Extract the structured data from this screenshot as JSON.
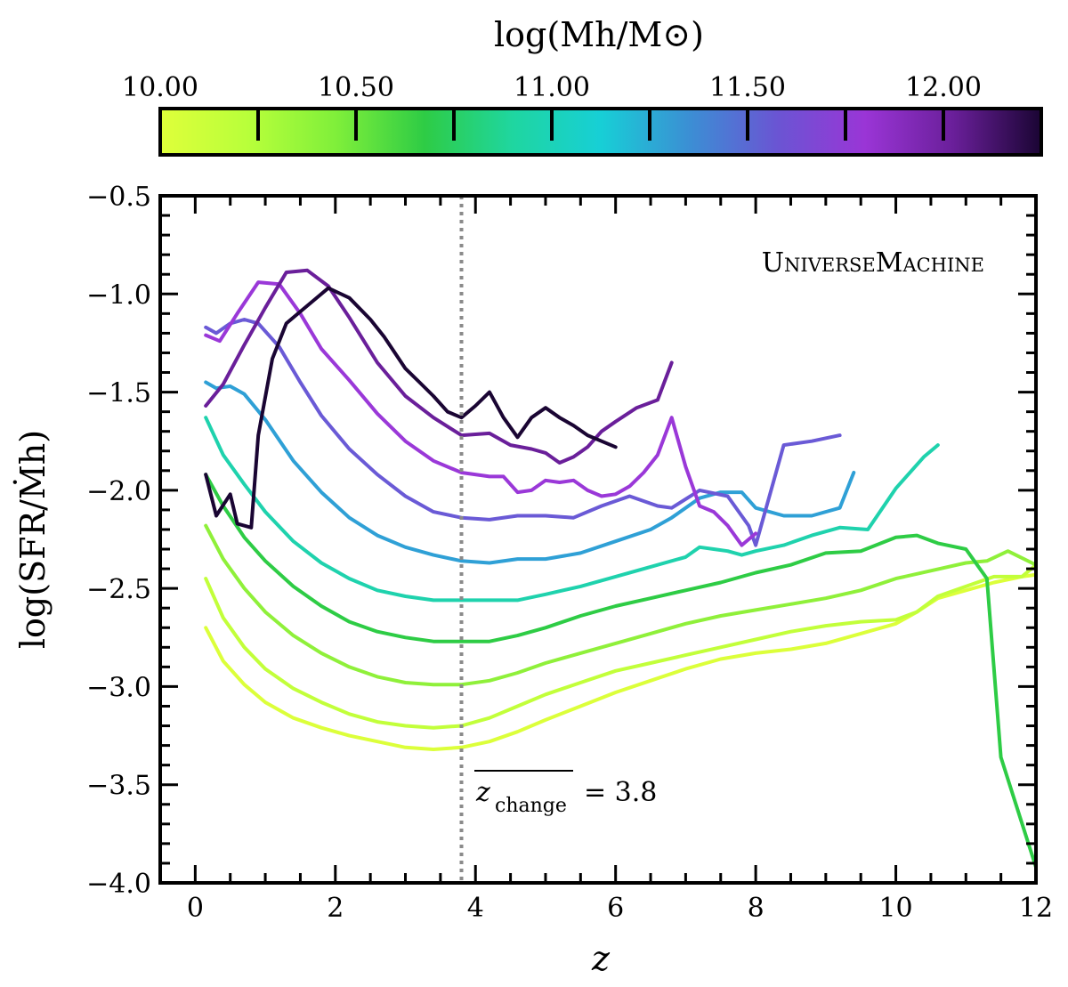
{
  "chart_data": {
    "type": "line",
    "xlabel": "z",
    "ylabel": "log(SFR/Ṁh)",
    "xlim": [
      -0.5,
      12
    ],
    "ylim": [
      -4.0,
      -0.5
    ],
    "x_ticks": [
      0,
      2,
      4,
      6,
      8,
      10,
      12
    ],
    "x_tick_labels": [
      "0",
      "2",
      "4",
      "6",
      "8",
      "10",
      "12"
    ],
    "y_ticks": [
      -4.0,
      -3.5,
      -3.0,
      -2.5,
      -2.0,
      -1.5,
      -1.0,
      -0.5
    ],
    "y_tick_labels": [
      "−4.0",
      "−3.5",
      "−3.0",
      "−2.5",
      "−2.0",
      "−1.5",
      "−1.0",
      "−0.5"
    ],
    "annotation_label": "UniverseMachine",
    "vline": {
      "x": 3.8,
      "style": "dotted",
      "color": "#888888"
    },
    "vline_label_sym": "z",
    "vline_label_sub": "change",
    "vline_label_value": "= 3.8",
    "colorbar": {
      "title": "log(Mh/M⊙)",
      "range": [
        10.0,
        12.25
      ],
      "tick_values": [
        10.0,
        10.5,
        11.0,
        11.5,
        12.0
      ],
      "tick_labels": [
        "10.00",
        "10.50",
        "11.00",
        "11.50",
        "12.00"
      ],
      "minor_ticks": [
        10.25,
        10.5,
        10.75,
        11.0,
        11.25,
        11.5,
        11.75,
        12.0
      ],
      "colormap": [
        "#dfff3a",
        "#b8ff3a",
        "#7fef3a",
        "#2ecc45",
        "#1fd6a0",
        "#17cfd6",
        "#3b8fd4",
        "#6a55d3",
        "#9a35d6",
        "#6a1f9a",
        "#1a0533"
      ]
    },
    "series": [
      {
        "name": "10.00",
        "color": "#dcff3a",
        "x": [
          0.15,
          0.4,
          0.7,
          1.0,
          1.4,
          1.8,
          2.2,
          2.6,
          3.0,
          3.4,
          3.8,
          4.2,
          4.6,
          5.0,
          5.5,
          6.0,
          6.5,
          7.0,
          7.5,
          8.0,
          8.5,
          9.0,
          9.5,
          10.0,
          10.3,
          10.6,
          11.0,
          11.4,
          11.8,
          12.0
        ],
        "y": [
          -2.7,
          -2.87,
          -2.99,
          -3.08,
          -3.16,
          -3.21,
          -3.25,
          -3.28,
          -3.31,
          -3.32,
          -3.31,
          -3.28,
          -3.23,
          -3.17,
          -3.1,
          -3.03,
          -2.97,
          -2.91,
          -2.86,
          -2.83,
          -2.81,
          -2.78,
          -2.73,
          -2.68,
          -2.62,
          -2.55,
          -2.51,
          -2.47,
          -2.44,
          -2.43
        ]
      },
      {
        "name": "10.25",
        "color": "#c2ff3a",
        "x": [
          0.15,
          0.4,
          0.7,
          1.0,
          1.4,
          1.8,
          2.2,
          2.6,
          3.0,
          3.4,
          3.8,
          4.2,
          4.6,
          5.0,
          5.5,
          6.0,
          6.5,
          7.0,
          7.5,
          8.0,
          8.5,
          9.0,
          9.5,
          10.0,
          10.3,
          10.6,
          11.0,
          11.4,
          11.8,
          12.0
        ],
        "y": [
          -2.45,
          -2.65,
          -2.8,
          -2.91,
          -3.01,
          -3.08,
          -3.14,
          -3.18,
          -3.2,
          -3.21,
          -3.2,
          -3.16,
          -3.1,
          -3.04,
          -2.98,
          -2.92,
          -2.88,
          -2.84,
          -2.8,
          -2.76,
          -2.72,
          -2.69,
          -2.67,
          -2.66,
          -2.62,
          -2.54,
          -2.49,
          -2.44,
          -2.44,
          -2.38
        ]
      },
      {
        "name": "10.50",
        "color": "#8ff03a",
        "x": [
          0.15,
          0.4,
          0.7,
          1.0,
          1.4,
          1.8,
          2.2,
          2.6,
          3.0,
          3.4,
          3.8,
          4.2,
          4.6,
          5.0,
          5.5,
          6.0,
          6.5,
          7.0,
          7.5,
          8.0,
          8.5,
          9.0,
          9.5,
          10.0,
          10.5,
          11.0,
          11.3,
          11.6,
          12.0
        ],
        "y": [
          -2.18,
          -2.35,
          -2.5,
          -2.62,
          -2.74,
          -2.83,
          -2.9,
          -2.95,
          -2.98,
          -2.99,
          -2.99,
          -2.97,
          -2.93,
          -2.88,
          -2.83,
          -2.78,
          -2.73,
          -2.68,
          -2.64,
          -2.61,
          -2.58,
          -2.55,
          -2.51,
          -2.45,
          -2.41,
          -2.37,
          -2.36,
          -2.31,
          -2.38
        ]
      },
      {
        "name": "10.75",
        "color": "#2ecc45",
        "x": [
          0.15,
          0.4,
          0.7,
          1.0,
          1.4,
          1.8,
          2.2,
          2.6,
          3.0,
          3.4,
          3.8,
          4.2,
          4.6,
          5.0,
          5.5,
          6.0,
          6.5,
          7.0,
          7.5,
          8.0,
          8.5,
          9.0,
          9.5,
          10.0,
          10.3,
          10.6,
          11.0,
          11.3,
          11.5,
          12.0
        ],
        "y": [
          -1.92,
          -2.08,
          -2.24,
          -2.36,
          -2.49,
          -2.59,
          -2.67,
          -2.72,
          -2.75,
          -2.77,
          -2.77,
          -2.77,
          -2.74,
          -2.7,
          -2.64,
          -2.59,
          -2.55,
          -2.51,
          -2.47,
          -2.42,
          -2.38,
          -2.32,
          -2.31,
          -2.24,
          -2.23,
          -2.27,
          -2.3,
          -2.45,
          -3.36,
          -3.92
        ]
      },
      {
        "name": "11.00",
        "color": "#1fd2ad",
        "x": [
          0.15,
          0.4,
          0.7,
          1.0,
          1.4,
          1.8,
          2.2,
          2.6,
          3.0,
          3.4,
          3.8,
          4.2,
          4.6,
          5.0,
          5.5,
          6.0,
          6.5,
          7.0,
          7.2,
          7.4,
          7.6,
          7.8,
          8.0,
          8.4,
          8.8,
          9.2,
          9.6,
          10.0,
          10.4,
          10.6
        ],
        "y": [
          -1.63,
          -1.82,
          -1.97,
          -2.11,
          -2.26,
          -2.37,
          -2.45,
          -2.51,
          -2.54,
          -2.56,
          -2.56,
          -2.56,
          -2.56,
          -2.53,
          -2.49,
          -2.44,
          -2.39,
          -2.34,
          -2.29,
          -2.3,
          -2.31,
          -2.33,
          -2.31,
          -2.28,
          -2.23,
          -2.19,
          -2.2,
          -1.99,
          -1.83,
          -1.77
        ]
      },
      {
        "name": "11.25",
        "color": "#2fa0d6",
        "x": [
          0.15,
          0.3,
          0.5,
          0.7,
          1.0,
          1.4,
          1.8,
          2.2,
          2.6,
          3.0,
          3.4,
          3.8,
          4.2,
          4.6,
          5.0,
          5.5,
          6.0,
          6.5,
          6.8,
          7.2,
          7.5,
          7.8,
          8.0,
          8.4,
          8.8,
          9.2,
          9.4
        ],
        "y": [
          -1.45,
          -1.48,
          -1.47,
          -1.51,
          -1.64,
          -1.85,
          -2.01,
          -2.14,
          -2.23,
          -2.29,
          -2.33,
          -2.36,
          -2.37,
          -2.35,
          -2.35,
          -2.32,
          -2.26,
          -2.2,
          -2.14,
          -2.04,
          -2.01,
          -2.01,
          -2.09,
          -2.13,
          -2.13,
          -2.09,
          -1.91
        ]
      },
      {
        "name": "11.50",
        "color": "#6a5ad6",
        "x": [
          0.15,
          0.3,
          0.5,
          0.7,
          0.9,
          1.2,
          1.5,
          1.8,
          2.2,
          2.6,
          3.0,
          3.4,
          3.8,
          4.2,
          4.6,
          5.0,
          5.4,
          5.8,
          6.2,
          6.6,
          6.8,
          7.2,
          7.6,
          7.9,
          8.0,
          8.4,
          8.8,
          9.2
        ],
        "y": [
          -1.17,
          -1.2,
          -1.15,
          -1.13,
          -1.15,
          -1.27,
          -1.45,
          -1.62,
          -1.79,
          -1.92,
          -2.03,
          -2.11,
          -2.14,
          -2.15,
          -2.13,
          -2.13,
          -2.14,
          -2.08,
          -2.03,
          -2.08,
          -2.09,
          -2.0,
          -2.03,
          -2.18,
          -2.28,
          -1.77,
          -1.75,
          -1.72
        ]
      },
      {
        "name": "11.75",
        "color": "#9a38d8",
        "x": [
          0.15,
          0.35,
          0.6,
          0.9,
          1.2,
          1.5,
          1.8,
          2.2,
          2.6,
          3.0,
          3.4,
          3.8,
          4.2,
          4.4,
          4.6,
          4.8,
          5.0,
          5.2,
          5.4,
          5.6,
          5.8,
          6.0,
          6.2,
          6.4,
          6.6,
          6.8,
          7.0,
          7.2,
          7.4,
          7.6,
          7.8,
          8.0
        ],
        "y": [
          -1.21,
          -1.24,
          -1.1,
          -0.94,
          -0.95,
          -1.1,
          -1.28,
          -1.44,
          -1.61,
          -1.75,
          -1.85,
          -1.91,
          -1.93,
          -1.93,
          -2.01,
          -2.0,
          -1.95,
          -1.96,
          -1.95,
          -2.0,
          -2.03,
          -2.02,
          -1.98,
          -1.91,
          -1.82,
          -1.63,
          -1.88,
          -2.08,
          -2.11,
          -2.18,
          -2.28,
          -2.22
        ]
      },
      {
        "name": "12.00",
        "color": "#6a1f9a",
        "x": [
          0.15,
          0.4,
          0.7,
          1.0,
          1.3,
          1.6,
          1.9,
          2.2,
          2.6,
          3.0,
          3.4,
          3.8,
          4.2,
          4.5,
          4.8,
          5.0,
          5.2,
          5.4,
          5.6,
          5.8,
          6.0,
          6.3,
          6.6,
          6.8
        ],
        "y": [
          -1.57,
          -1.46,
          -1.26,
          -1.07,
          -0.89,
          -0.88,
          -0.96,
          -1.12,
          -1.35,
          -1.52,
          -1.63,
          -1.72,
          -1.71,
          -1.77,
          -1.79,
          -1.81,
          -1.86,
          -1.83,
          -1.78,
          -1.7,
          -1.65,
          -1.58,
          -1.54,
          -1.35
        ]
      },
      {
        "name": "12.25",
        "color": "#1a0533",
        "x": [
          0.15,
          0.3,
          0.5,
          0.6,
          0.8,
          0.9,
          1.1,
          1.3,
          1.5,
          1.7,
          1.9,
          2.2,
          2.5,
          2.7,
          3.0,
          3.2,
          3.4,
          3.6,
          3.8,
          4.0,
          4.2,
          4.4,
          4.6,
          4.8,
          5.0,
          5.2,
          5.4,
          5.6,
          5.8,
          6.0
        ],
        "y": [
          -1.92,
          -2.13,
          -2.02,
          -2.17,
          -2.19,
          -1.72,
          -1.33,
          -1.15,
          -1.09,
          -1.03,
          -0.97,
          -1.02,
          -1.13,
          -1.22,
          -1.38,
          -1.45,
          -1.52,
          -1.6,
          -1.63,
          -1.57,
          -1.5,
          -1.63,
          -1.73,
          -1.63,
          -1.58,
          -1.63,
          -1.67,
          -1.72,
          -1.75,
          -1.78
        ]
      }
    ]
  }
}
